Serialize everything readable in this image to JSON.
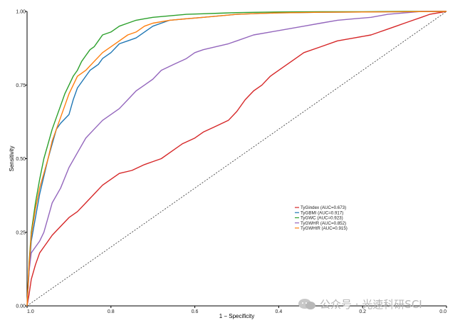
{
  "chart_data": {
    "type": "line",
    "xlabel": "1 − Specificity",
    "ylabel": "Sensitivity",
    "x_reversed": true,
    "xlim": [
      1.0,
      0.0
    ],
    "ylim": [
      0.0,
      1.0
    ],
    "x_ticks": [
      "1.0",
      "0.8",
      "0.6",
      "0.4",
      "0.2",
      "0.0"
    ],
    "y_ticks": [
      "0.00",
      "0.25",
      "0.50",
      "0.75",
      "1.00"
    ],
    "grid": false,
    "legend_position": "center-right",
    "reference_line": {
      "style": "dashed",
      "x": [
        1.0,
        0.0
      ],
      "y": [
        0.0,
        1.0
      ]
    },
    "series": [
      {
        "name": "TyGindex (AUC=0.673)",
        "color": "#d62728",
        "x": [
          1.0,
          0.995,
          0.99,
          0.98,
          0.97,
          0.96,
          0.95,
          0.94,
          0.92,
          0.9,
          0.88,
          0.86,
          0.84,
          0.82,
          0.8,
          0.78,
          0.75,
          0.72,
          0.7,
          0.68,
          0.66,
          0.63,
          0.6,
          0.58,
          0.55,
          0.52,
          0.5,
          0.48,
          0.46,
          0.44,
          0.42,
          0.4,
          0.38,
          0.36,
          0.34,
          0.3,
          0.26,
          0.22,
          0.18,
          0.16,
          0.14,
          0.12,
          0.1,
          0.08,
          0.06,
          0.04,
          0.0
        ],
        "y": [
          0.0,
          0.04,
          0.09,
          0.14,
          0.18,
          0.2,
          0.22,
          0.24,
          0.27,
          0.3,
          0.32,
          0.35,
          0.38,
          0.41,
          0.43,
          0.45,
          0.46,
          0.48,
          0.49,
          0.5,
          0.52,
          0.55,
          0.57,
          0.59,
          0.61,
          0.63,
          0.66,
          0.7,
          0.73,
          0.75,
          0.78,
          0.8,
          0.82,
          0.84,
          0.86,
          0.88,
          0.9,
          0.91,
          0.92,
          0.93,
          0.94,
          0.95,
          0.96,
          0.97,
          0.98,
          0.99,
          1.0
        ]
      },
      {
        "name": "TyGBMI (AUC=0.917)",
        "color": "#1f77b4",
        "x": [
          1.0,
          0.995,
          0.99,
          0.98,
          0.97,
          0.96,
          0.95,
          0.94,
          0.93,
          0.92,
          0.9,
          0.89,
          0.88,
          0.87,
          0.86,
          0.85,
          0.84,
          0.83,
          0.82,
          0.8,
          0.78,
          0.76,
          0.74,
          0.72,
          0.7,
          0.68,
          0.66,
          0.62,
          0.58,
          0.54,
          0.5,
          0.45,
          0.4,
          0.3,
          0.2,
          0.1,
          0.0
        ],
        "y": [
          0.0,
          0.12,
          0.22,
          0.3,
          0.38,
          0.44,
          0.5,
          0.55,
          0.6,
          0.62,
          0.65,
          0.7,
          0.74,
          0.76,
          0.78,
          0.8,
          0.81,
          0.82,
          0.84,
          0.86,
          0.89,
          0.9,
          0.91,
          0.93,
          0.95,
          0.96,
          0.97,
          0.975,
          0.98,
          0.985,
          0.99,
          0.993,
          0.995,
          0.997,
          0.998,
          0.999,
          1.0
        ]
      },
      {
        "name": "TyGWC (AUC=0.923)",
        "color": "#2ca02c",
        "x": [
          1.0,
          0.995,
          0.99,
          0.98,
          0.97,
          0.96,
          0.95,
          0.94,
          0.93,
          0.92,
          0.91,
          0.9,
          0.89,
          0.88,
          0.87,
          0.86,
          0.85,
          0.84,
          0.83,
          0.82,
          0.8,
          0.78,
          0.76,
          0.74,
          0.72,
          0.7,
          0.66,
          0.62,
          0.58,
          0.54,
          0.5,
          0.45,
          0.4,
          0.3,
          0.2,
          0.1,
          0.0
        ],
        "y": [
          0.0,
          0.15,
          0.25,
          0.35,
          0.43,
          0.5,
          0.55,
          0.6,
          0.64,
          0.68,
          0.72,
          0.75,
          0.78,
          0.8,
          0.83,
          0.85,
          0.87,
          0.88,
          0.9,
          0.92,
          0.93,
          0.95,
          0.96,
          0.97,
          0.975,
          0.98,
          0.985,
          0.99,
          0.992,
          0.994,
          0.996,
          0.997,
          0.998,
          0.999,
          0.999,
          1.0,
          1.0
        ]
      },
      {
        "name": "TyGWHR (AUC=0.852)",
        "color": "#9467bd",
        "x": [
          1.0,
          0.995,
          0.99,
          0.98,
          0.97,
          0.96,
          0.95,
          0.94,
          0.92,
          0.9,
          0.88,
          0.86,
          0.84,
          0.82,
          0.8,
          0.78,
          0.76,
          0.74,
          0.72,
          0.7,
          0.68,
          0.65,
          0.62,
          0.6,
          0.58,
          0.55,
          0.52,
          0.5,
          0.46,
          0.42,
          0.38,
          0.34,
          0.3,
          0.26,
          0.22,
          0.18,
          0.14,
          0.1,
          0.06,
          0.0
        ],
        "y": [
          0.0,
          0.12,
          0.18,
          0.2,
          0.22,
          0.25,
          0.3,
          0.35,
          0.4,
          0.47,
          0.52,
          0.57,
          0.6,
          0.63,
          0.65,
          0.67,
          0.7,
          0.73,
          0.75,
          0.77,
          0.8,
          0.82,
          0.84,
          0.86,
          0.87,
          0.88,
          0.89,
          0.9,
          0.92,
          0.93,
          0.94,
          0.95,
          0.96,
          0.97,
          0.975,
          0.98,
          0.99,
          0.995,
          1.0,
          1.0
        ]
      },
      {
        "name": "TyGWHtR (AUC=0.915)",
        "color": "#ff7f0e",
        "x": [
          1.0,
          0.995,
          0.99,
          0.98,
          0.97,
          0.96,
          0.95,
          0.94,
          0.93,
          0.92,
          0.91,
          0.9,
          0.89,
          0.88,
          0.86,
          0.84,
          0.82,
          0.8,
          0.78,
          0.76,
          0.74,
          0.72,
          0.7,
          0.66,
          0.62,
          0.58,
          0.54,
          0.5,
          0.45,
          0.4,
          0.3,
          0.2,
          0.1,
          0.0
        ],
        "y": [
          0.0,
          0.14,
          0.24,
          0.33,
          0.4,
          0.45,
          0.5,
          0.56,
          0.6,
          0.64,
          0.68,
          0.72,
          0.75,
          0.78,
          0.8,
          0.83,
          0.86,
          0.88,
          0.9,
          0.92,
          0.93,
          0.95,
          0.96,
          0.97,
          0.975,
          0.98,
          0.985,
          0.99,
          0.993,
          0.995,
          0.997,
          0.998,
          0.999,
          1.0
        ]
      }
    ]
  },
  "watermark": {
    "text": "公众号 · 光速科研SCI",
    "icon": "wechat-icon"
  }
}
